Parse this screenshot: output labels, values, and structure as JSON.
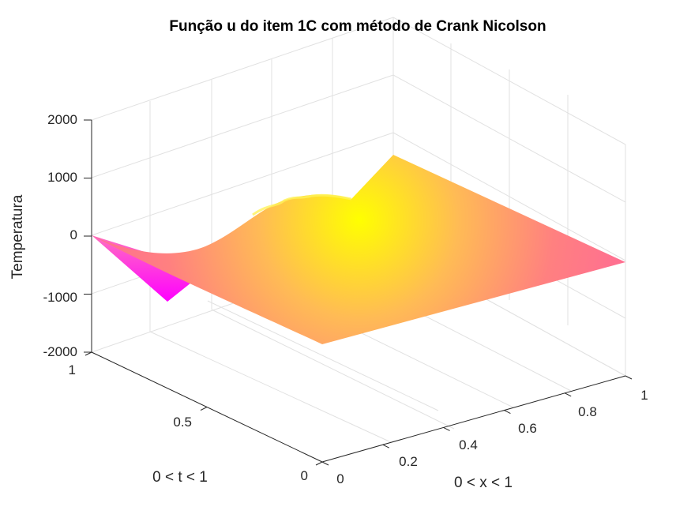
{
  "chart_data": {
    "type": "surface",
    "title": "Função u do item 1C com método de Crank Nicolson",
    "xlabel": "0 < x < 1",
    "ylabel": "0 < t < 1",
    "zlabel": "Temperatura",
    "xlim": [
      0,
      1
    ],
    "ylim": [
      0,
      1
    ],
    "zlim": [
      -2000,
      2000
    ],
    "x_ticks": [
      "0",
      "0.2",
      "0.4",
      "0.6",
      "0.8",
      "1"
    ],
    "y_ticks": [
      "0",
      "0.5",
      "1"
    ],
    "z_ticks": [
      "-2000",
      "-1000",
      "0",
      "1000",
      "2000"
    ],
    "grid": true,
    "colormap": [
      "#ff00ff",
      "#ff8080",
      "#ffff00"
    ],
    "corner_values": [
      {
        "x": 0,
        "t": 0,
        "u": 0
      },
      {
        "x": 1,
        "t": 0,
        "u": 0
      },
      {
        "x": 0,
        "t": 1,
        "u": 0
      },
      {
        "x": 1,
        "t": 1,
        "u": 0
      },
      {
        "x": 0.125,
        "t": 1,
        "u": -1150
      }
    ],
    "peak": {
      "x": 0.5,
      "t": 0.85,
      "u": 650
    }
  }
}
